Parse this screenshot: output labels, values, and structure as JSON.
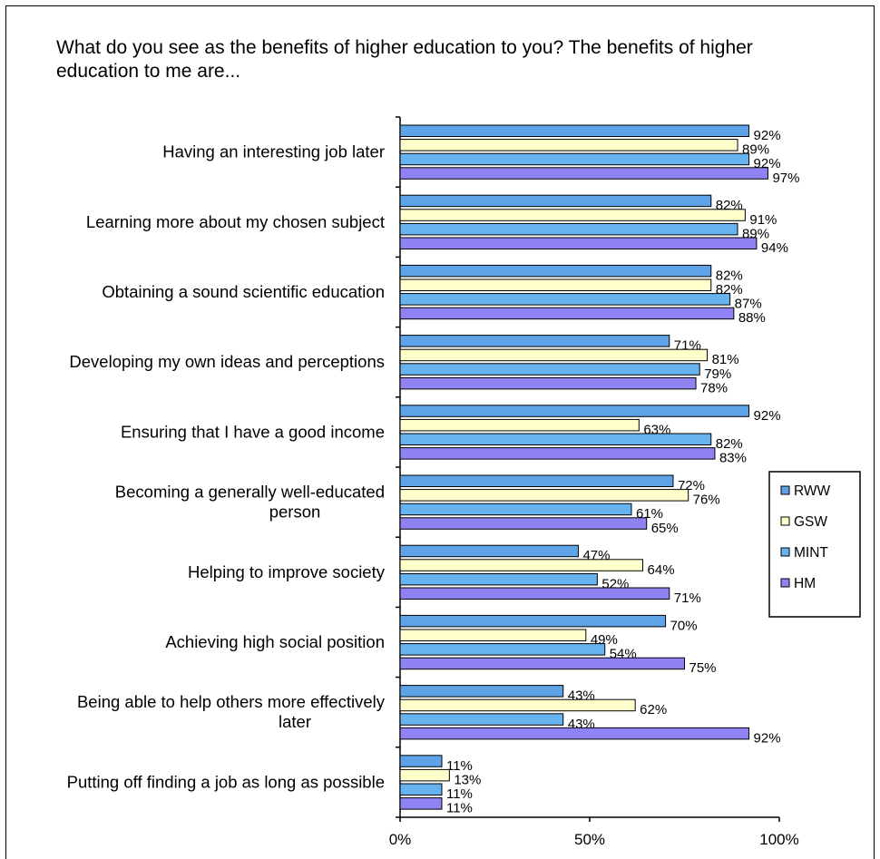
{
  "chart_data": {
    "type": "bar",
    "orientation": "horizontal",
    "title": "What do you see as the benefits of higher education to you? The benefits of higher education to me are...",
    "categories": [
      [
        "Having an interesting job later"
      ],
      [
        "Learning more about my chosen subject"
      ],
      [
        "Obtaining a sound scientific education"
      ],
      [
        "Developing my own ideas and perceptions"
      ],
      [
        "Ensuring that I have a good income"
      ],
      [
        "Becoming a generally well-educated",
        "person"
      ],
      [
        "Helping to improve society"
      ],
      [
        "Achieving high social position"
      ],
      [
        "Being able to help others more effectively",
        "later"
      ],
      [
        "Putting off finding a job as long as possible"
      ]
    ],
    "series": [
      {
        "name": "RWW",
        "color": "#5ea2e8",
        "values": [
          92,
          82,
          82,
          71,
          92,
          72,
          47,
          70,
          43,
          11
        ]
      },
      {
        "name": "GSW",
        "color": "#ffffcc",
        "values": [
          89,
          91,
          82,
          81,
          63,
          76,
          64,
          49,
          62,
          13
        ]
      },
      {
        "name": "MINT",
        "color": "#66b3f0",
        "values": [
          92,
          89,
          87,
          79,
          82,
          61,
          52,
          54,
          43,
          11
        ]
      },
      {
        "name": "HM",
        "color": "#8f82f2",
        "values": [
          97,
          94,
          88,
          78,
          83,
          65,
          71,
          75,
          92,
          11
        ]
      }
    ],
    "value_suffix": "%",
    "xlim": [
      0,
      100
    ],
    "xticks": [
      "0%",
      "50%",
      "100%"
    ],
    "legend_position": "right",
    "grid": false
  }
}
